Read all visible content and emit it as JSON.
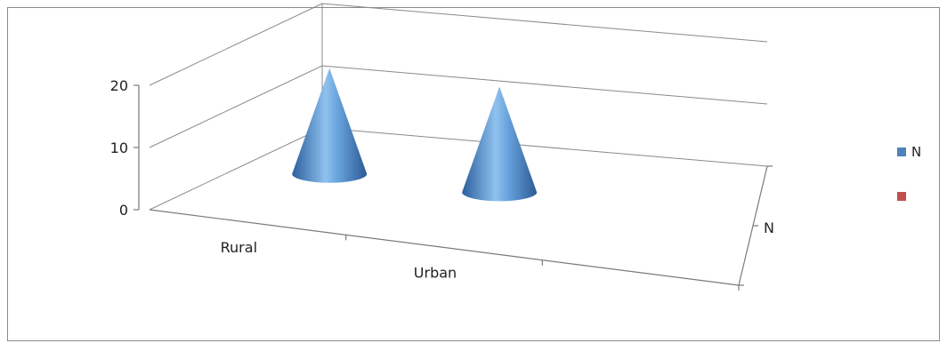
{
  "chart_data": {
    "type": "bar",
    "bar_shape": "3d-cone",
    "categories": [
      "Rural",
      "Urban"
    ],
    "series": [
      {
        "name": "N",
        "values": [
          17,
          17
        ],
        "color": "#4f81bd"
      },
      {
        "name": "",
        "values": [
          0,
          0
        ],
        "color": "#c0504d"
      }
    ],
    "depth_axis_label": "N",
    "ylim": [
      0,
      20
    ],
    "yticks": [
      "0",
      "10",
      "20"
    ],
    "grid": true,
    "legend_position": "right"
  }
}
